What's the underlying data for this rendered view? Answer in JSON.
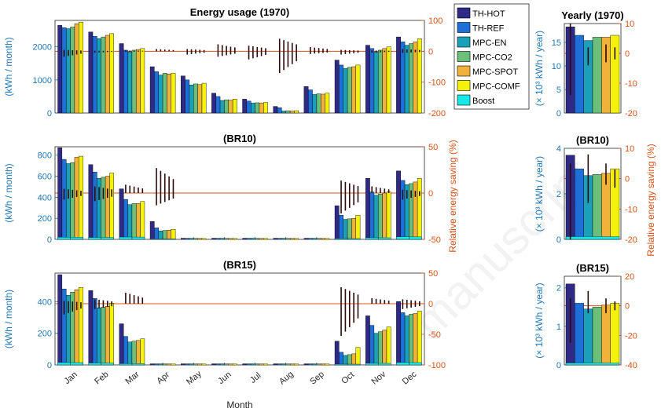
{
  "watermark": "manuscript",
  "colors": {
    "left_axis": "#1f77b4",
    "right_axis": "#d95319",
    "series": [
      "#2e2a86",
      "#1f6fd8",
      "#1aa0b8",
      "#6bbf7a",
      "#f0b23a",
      "#f4f10b",
      "#16e8e8"
    ]
  },
  "chart_data": [
    {
      "type": "bar",
      "title": "Energy usage (1970)",
      "ylabel": "(kWh / month)",
      "y2label": "",
      "categories": [
        "Jan",
        "Feb",
        "Mar",
        "Apr",
        "May",
        "Jun",
        "Jul",
        "Aug",
        "Sep",
        "Oct",
        "Nov",
        "Dec"
      ],
      "ylim": [
        0,
        2800
      ],
      "yticks": [
        "0",
        "1000",
        "2000"
      ],
      "y2lim": [
        -200,
        100
      ],
      "y2ticks": [
        "100",
        "0",
        "-100",
        "-200"
      ],
      "xlabel": "",
      "series": [
        {
          "name": "TH-HOT",
          "values": [
            2650,
            2450,
            2100,
            1400,
            1120,
            600,
            420,
            200,
            800,
            1600,
            2050,
            2300
          ]
        },
        {
          "name": "TH-REF",
          "values": [
            2580,
            2320,
            1900,
            1250,
            1000,
            500,
            360,
            160,
            700,
            1450,
            1950,
            2150
          ]
        },
        {
          "name": "MPC-EN",
          "values": [
            2550,
            2250,
            1850,
            1150,
            850,
            380,
            300,
            60,
            560,
            1350,
            1850,
            2050
          ]
        },
        {
          "name": "MPC-CO2",
          "values": [
            2600,
            2300,
            1900,
            1200,
            880,
            400,
            310,
            70,
            580,
            1380,
            1900,
            2100
          ]
        },
        {
          "name": "MPC-SPOT",
          "values": [
            2700,
            2350,
            1920,
            1180,
            860,
            390,
            300,
            60,
            570,
            1400,
            1950,
            2150
          ]
        },
        {
          "name": "MPC-COMF",
          "values": [
            2750,
            2400,
            1950,
            1200,
            900,
            420,
            320,
            70,
            600,
            1450,
            2000,
            2250
          ]
        },
        {
          "name": "Boost",
          "values": [
            0,
            0,
            0,
            0,
            0,
            0,
            0,
            0,
            0,
            0,
            0,
            0
          ]
        }
      ],
      "savings_range": [
        [
          -20,
          5
        ],
        [
          -5,
          2
        ],
        [
          -2,
          3
        ],
        [
          0,
          8
        ],
        [
          -12,
          8
        ],
        [
          -20,
          25
        ],
        [
          -30,
          20
        ],
        [
          -80,
          45
        ],
        [
          -10,
          15
        ],
        [
          -12,
          5
        ],
        [
          -5,
          3
        ],
        [
          -6,
          8
        ]
      ]
    },
    {
      "type": "bar",
      "title": "(BR10)",
      "ylabel": "(kWh / month)",
      "y2label": "Relative energy saving (%)",
      "categories": [
        "Jan",
        "Feb",
        "Mar",
        "Apr",
        "May",
        "Jun",
        "Jul",
        "Aug",
        "Sep",
        "Oct",
        "Nov",
        "Dec"
      ],
      "ylim": [
        0,
        880
      ],
      "yticks": [
        "0",
        "200",
        "400",
        "600",
        "800"
      ],
      "y2lim": [
        -50,
        50
      ],
      "y2ticks": [
        "50",
        "0",
        "-50"
      ],
      "xlabel": "",
      "series": [
        {
          "name": "TH-HOT",
          "values": [
            870,
            710,
            480,
            170,
            0,
            0,
            0,
            0,
            0,
            320,
            580,
            650
          ]
        },
        {
          "name": "TH-REF",
          "values": [
            760,
            640,
            380,
            110,
            0,
            0,
            0,
            0,
            0,
            230,
            450,
            560
          ]
        },
        {
          "name": "MPC-EN",
          "values": [
            720,
            580,
            330,
            80,
            0,
            0,
            0,
            0,
            0,
            190,
            420,
            520
          ]
        },
        {
          "name": "MPC-CO2",
          "values": [
            730,
            590,
            340,
            85,
            0,
            0,
            0,
            0,
            0,
            195,
            430,
            530
          ]
        },
        {
          "name": "MPC-SPOT",
          "values": [
            780,
            600,
            340,
            88,
            0,
            0,
            0,
            0,
            0,
            200,
            440,
            545
          ]
        },
        {
          "name": "MPC-COMF",
          "values": [
            790,
            630,
            360,
            95,
            0,
            0,
            0,
            0,
            0,
            230,
            450,
            580
          ]
        },
        {
          "name": "Boost",
          "values": [
            20,
            18,
            22,
            5,
            0,
            0,
            0,
            0,
            0,
            8,
            15,
            25
          ]
        }
      ],
      "savings_range": [
        [
          -8,
          5
        ],
        [
          -10,
          8
        ],
        [
          0,
          10
        ],
        [
          -15,
          30
        ],
        [
          0,
          0
        ],
        [
          0,
          0
        ],
        [
          0,
          0
        ],
        [
          0,
          0
        ],
        [
          0,
          0
        ],
        [
          -25,
          15
        ],
        [
          0,
          8
        ],
        [
          -8,
          4
        ]
      ]
    },
    {
      "type": "bar",
      "title": "(BR15)",
      "ylabel": "(kWh / month)",
      "y2label": "",
      "categories": [
        "Jan",
        "Feb",
        "Mar",
        "Apr",
        "May",
        "Jun",
        "Jul",
        "Aug",
        "Sep",
        "Oct",
        "Nov",
        "Dec"
      ],
      "ylim": [
        0,
        580
      ],
      "yticks": [
        "0",
        "200",
        "400"
      ],
      "y2lim": [
        -100,
        50
      ],
      "y2ticks": [
        "50",
        "0",
        "-50",
        "-100"
      ],
      "xlabel": "Month",
      "series": [
        {
          "name": "TH-HOT",
          "values": [
            570,
            470,
            260,
            0,
            0,
            0,
            0,
            0,
            0,
            150,
            310,
            400
          ]
        },
        {
          "name": "TH-REF",
          "values": [
            480,
            420,
            180,
            0,
            0,
            0,
            0,
            0,
            0,
            80,
            250,
            330
          ]
        },
        {
          "name": "MPC-EN",
          "values": [
            440,
            360,
            145,
            0,
            0,
            0,
            0,
            0,
            0,
            60,
            200,
            310
          ]
        },
        {
          "name": "MPC-CO2",
          "values": [
            460,
            365,
            150,
            0,
            0,
            0,
            0,
            0,
            0,
            65,
            210,
            320
          ]
        },
        {
          "name": "MPC-SPOT",
          "values": [
            475,
            370,
            155,
            0,
            0,
            0,
            0,
            0,
            0,
            70,
            220,
            325
          ]
        },
        {
          "name": "MPC-COMF",
          "values": [
            490,
            390,
            165,
            0,
            0,
            0,
            0,
            0,
            0,
            110,
            240,
            340
          ]
        },
        {
          "name": "Boost",
          "values": [
            15,
            12,
            8,
            0,
            0,
            0,
            0,
            0,
            0,
            5,
            10,
            15
          ]
        }
      ],
      "savings_range": [
        [
          -20,
          5
        ],
        [
          -10,
          8
        ],
        [
          0,
          20
        ],
        [
          0,
          0
        ],
        [
          0,
          0
        ],
        [
          0,
          0
        ],
        [
          0,
          0
        ],
        [
          0,
          0
        ],
        [
          0,
          0
        ],
        [
          -60,
          30
        ],
        [
          0,
          10
        ],
        [
          -10,
          8
        ]
      ]
    },
    {
      "type": "bar",
      "title": "Yearly (1970)",
      "ylabel": "(× 10³ kWh / year)",
      "y2label": "",
      "categories": [
        ""
      ],
      "ylim": [
        0,
        19
      ],
      "yticks": [
        "0",
        "5",
        "10",
        "15"
      ],
      "y2lim": [
        -20,
        10
      ],
      "y2ticks": [
        "10",
        "0",
        "-10",
        "-20"
      ],
      "series_values": [
        18.3,
        16.5,
        15.4,
        16.1,
        16.1,
        16.5,
        0
      ],
      "savings_range": [
        [
          -14,
          10
        ],
        [
          0,
          0
        ],
        [
          -4,
          2
        ],
        [
          0,
          0
        ],
        [
          -3,
          3
        ],
        [
          -2,
          2
        ]
      ]
    },
    {
      "type": "bar",
      "title": "(BR10)",
      "ylabel": "(× 10³ kWh / year)",
      "y2label": "Relative energy saving (%)",
      "categories": [
        ""
      ],
      "ylim": [
        0,
        4
      ],
      "yticks": [
        "0",
        "2",
        "4"
      ],
      "y2lim": [
        -20,
        10
      ],
      "y2ticks": [
        "10",
        "0",
        "-10",
        "-20"
      ],
      "series_values": [
        3.7,
        3.1,
        2.8,
        2.85,
        2.9,
        3.1,
        0.12
      ],
      "savings_range": [
        [
          -20,
          5
        ],
        [
          0,
          0
        ],
        [
          -8,
          8
        ],
        [
          0,
          0
        ],
        [
          -2,
          5
        ],
        [
          -3,
          3
        ]
      ]
    },
    {
      "type": "bar",
      "title": "(BR15)",
      "ylabel": "(× 10³ kWh / year)",
      "y2label": "",
      "categories": [
        ""
      ],
      "ylim": [
        0,
        2.3
      ],
      "yticks": [
        "0",
        "1",
        "2"
      ],
      "y2lim": [
        -40,
        20
      ],
      "y2ticks": [
        "20",
        "0",
        "-20",
        "-40"
      ],
      "series_values": [
        2.1,
        1.6,
        1.45,
        1.5,
        1.55,
        1.6,
        0.05
      ],
      "savings_range": [
        [
          -25,
          5
        ],
        [
          0,
          0
        ],
        [
          -5,
          10
        ],
        [
          0,
          0
        ],
        [
          -5,
          5
        ],
        [
          -3,
          3
        ]
      ]
    }
  ],
  "legend": [
    "TH-HOT",
    "TH-REF",
    "MPC-EN",
    "MPC-CO2",
    "MPC-SPOT",
    "MPC-COMF",
    "Boost"
  ]
}
